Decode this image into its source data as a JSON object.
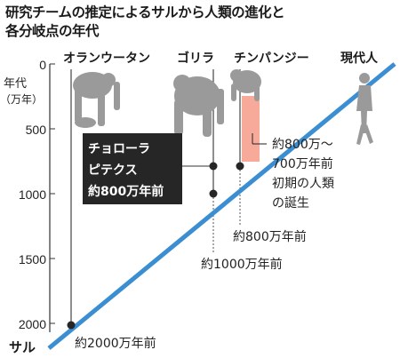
{
  "title": [
    "研究チームの推定によるサルから人類の進化と",
    "各分岐点の年代"
  ],
  "axis": {
    "label": [
      "年代",
      "（万年）"
    ],
    "ticks": [
      0,
      500,
      1000,
      1500,
      2000
    ],
    "range": [
      0,
      2000
    ]
  },
  "top_labels": {
    "orangutan": "オランウータン",
    "gorilla": "ゴリラ",
    "chimp": "チンパンジー",
    "human": "現代人"
  },
  "bottom_label": "サル",
  "callout": [
    "チョローラ",
    "ピテクス",
    "約800万年前"
  ],
  "annotations": {
    "ape_origin": "約2000万年前",
    "gorilla_split": "約1000万年前",
    "chimp_split": "約800万年前",
    "human_origin": [
      "約800万～",
      "700万年前",
      "初期の人類",
      "の誕生"
    ]
  },
  "colors": {
    "main_line": "#3a8ed1",
    "highlight": "#f7a99a",
    "callout_bg": "#262626",
    "silhouette": "#9a9a9a"
  },
  "icons": [
    "orangutan-silhouette",
    "gorilla-silhouette",
    "chimpanzee-silhouette",
    "human-silhouette"
  ]
}
